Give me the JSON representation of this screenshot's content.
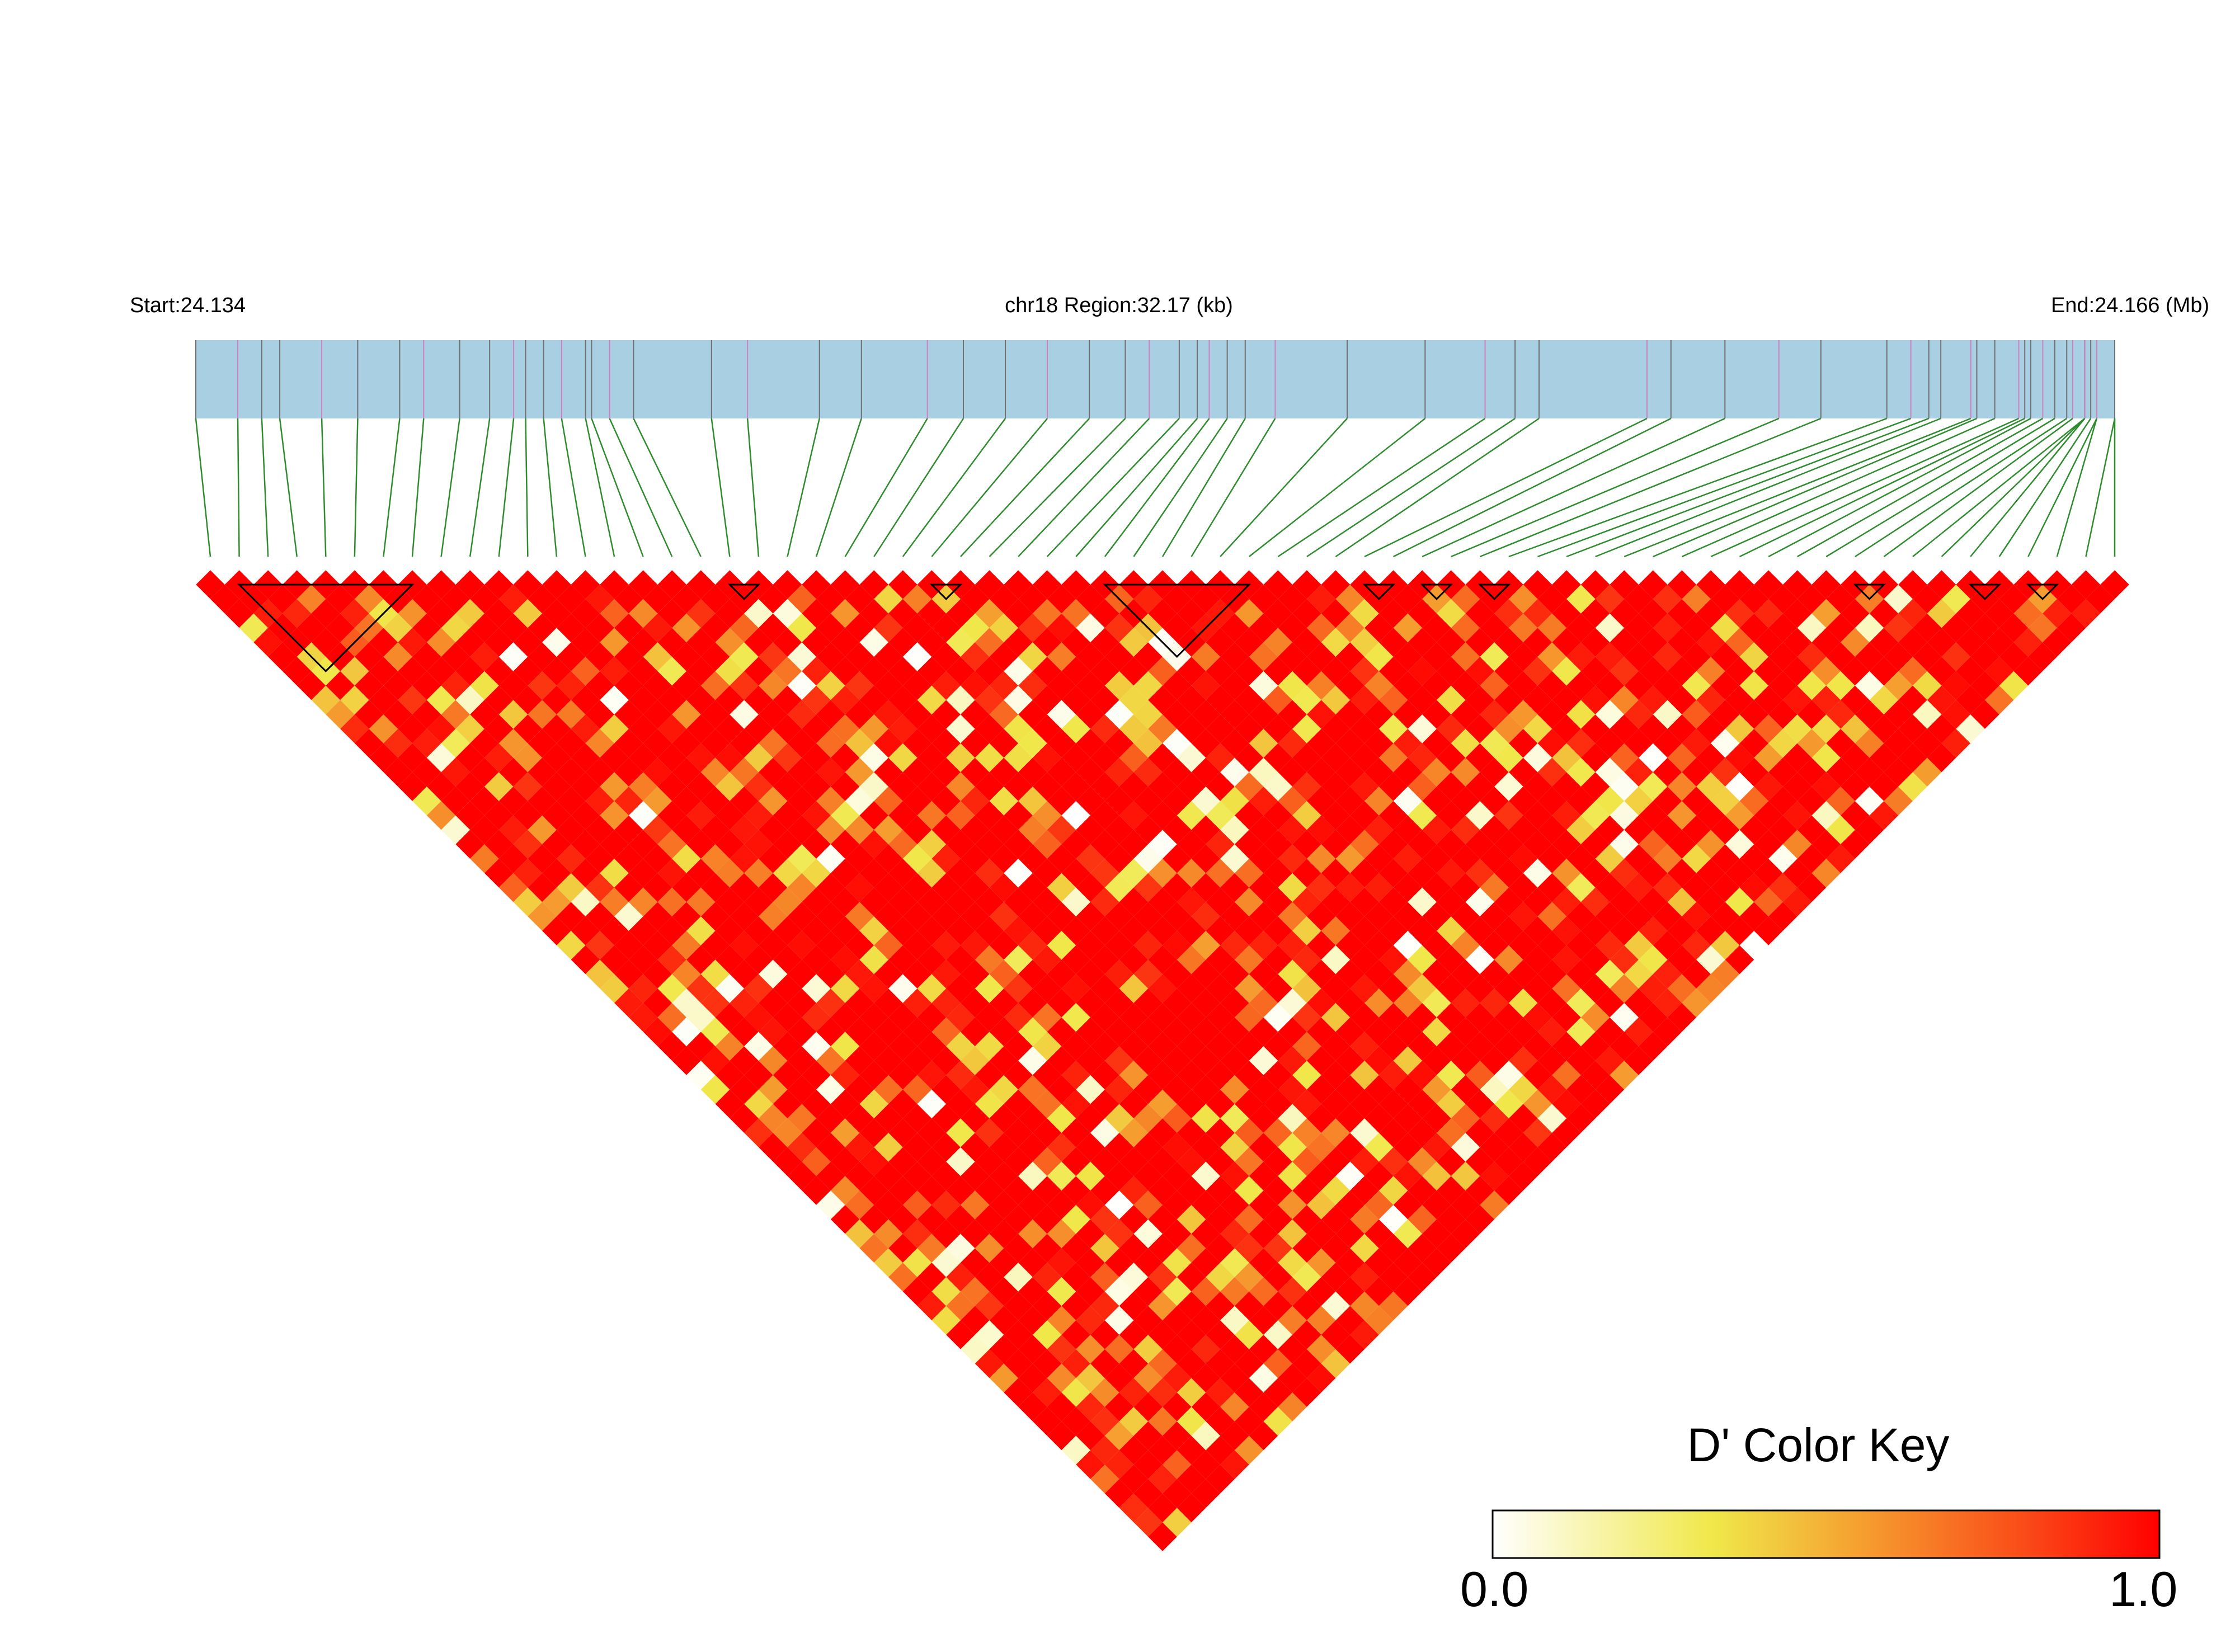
{
  "chart_data": {
    "type": "heatmap",
    "title": "",
    "header": {
      "start_label": "Start:24.134",
      "region_label": "chr18 Region:32.17 (kb)",
      "end_label": "End:24.166 (Mb)"
    },
    "region": {
      "chromosome": "chr18",
      "start_mb": 24.134,
      "end_mb": 24.166,
      "length_kb": 32.17
    },
    "snp_count": 67,
    "snp_positions_mb": [
      24.134,
      24.1347,
      24.1351,
      24.1354,
      24.1361,
      24.1367,
      24.1374,
      24.1378,
      24.1384,
      24.1389,
      24.1393,
      24.1395,
      24.1398,
      24.1401,
      24.1405,
      24.1406,
      24.1409,
      24.1413,
      24.1426,
      24.1432,
      24.1444,
      24.1451,
      24.1462,
      24.1468,
      24.1475,
      24.1482,
      24.1489,
      24.1495,
      24.1499,
      24.1504,
      24.1507,
      24.1509,
      24.1512,
      24.1515,
      24.152,
      24.1532,
      24.1545,
      24.1555,
      24.156,
      24.1564,
      24.1582,
      24.1586,
      24.1595,
      24.1604,
      24.1611,
      24.1622,
      24.1626,
      24.1629,
      24.1631,
      24.1636,
      24.1637,
      24.164,
      24.1644,
      24.1645,
      24.1646,
      24.1648,
      24.165,
      24.1652,
      24.1653,
      24.1655,
      24.1655,
      24.1655,
      24.1656,
      24.1657,
      24.1657,
      24.166,
      24.166
    ],
    "ld_blocks": [
      [
        1,
        7
      ],
      [
        18,
        19
      ],
      [
        25,
        26
      ],
      [
        31,
        36
      ],
      [
        40,
        41
      ],
      [
        42,
        43
      ],
      [
        44,
        45
      ],
      [
        57,
        58
      ],
      [
        61,
        62
      ],
      [
        63,
        64
      ]
    ],
    "color_key": {
      "title": "D' Color Key",
      "min_label": "0.0",
      "max_label": "1.0",
      "min": 0.0,
      "max": 1.0,
      "colors": [
        "#ffffff",
        "#f0e84a",
        "#f5a030",
        "#fa4a18",
        "#ff0000"
      ]
    },
    "colors": {
      "track": "#a8cfe2",
      "connector": "#2e8b2e",
      "snp_major": "#707070",
      "snp_minor": "#d080c0"
    },
    "d_prime_seed": 20240518
  }
}
